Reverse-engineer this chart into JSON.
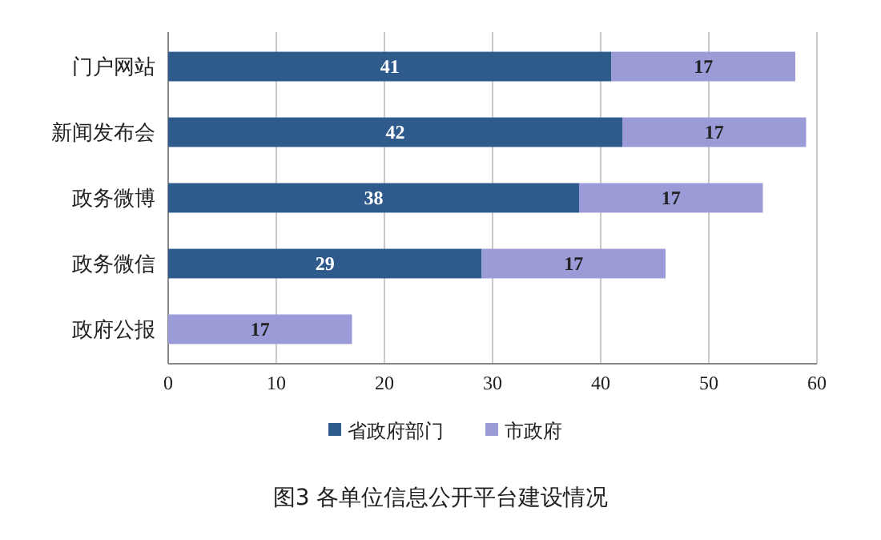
{
  "chart_data": {
    "type": "bar",
    "orientation": "horizontal",
    "stacked": true,
    "title": "图3 各单位信息公开平台建设情况",
    "categories": [
      "门户网站",
      "新闻发布会",
      "政务微博",
      "政务微信",
      "政府公报"
    ],
    "series": [
      {
        "name": "省政府部门",
        "color": "#2e5b8c",
        "values": [
          41,
          42,
          38,
          29,
          null
        ]
      },
      {
        "name": "市政府",
        "color": "#9b9bd8",
        "values": [
          17,
          17,
          17,
          17,
          17
        ]
      }
    ],
    "xlim": [
      0,
      60
    ],
    "xticks": [
      0,
      10,
      20,
      30,
      40,
      50,
      60
    ],
    "grid": "x",
    "legend": "bottom",
    "data_labels": true
  }
}
